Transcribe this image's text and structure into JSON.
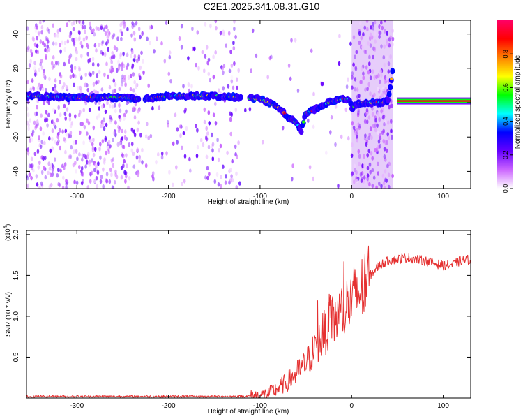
{
  "title": "C2E1.2025.341.08.31.G10",
  "chart_data": [
    {
      "type": "heatmap",
      "xlabel": "Height of straight line (km)",
      "ylabel": "Frequency (Hz)",
      "xlim": [
        -355,
        130
      ],
      "ylim": [
        -50,
        48
      ],
      "xticks": [
        -300,
        -200,
        -100,
        0,
        100
      ],
      "yticks": [
        -40,
        -20,
        0,
        20,
        40
      ],
      "colorbar": {
        "label": "Normalized spectral amplitude",
        "range": [
          0,
          1
        ],
        "ticks": [
          "0.0",
          "0.2",
          "0.4",
          "0.6",
          "0.8"
        ],
        "tick_values": [
          0.0,
          0.2,
          0.4,
          0.6,
          0.8
        ],
        "colors": [
          "#ffffff",
          "#cc66ff",
          "#6600ff",
          "#0000ff",
          "#00ffff",
          "#00ff00",
          "#ffff00",
          "#ff8000",
          "#ff0000",
          "#ff0066"
        ]
      },
      "scatter_region": {
        "x": [
          -355,
          45
        ],
        "y": [
          -50,
          48
        ]
      },
      "noise_band": {
        "x": [
          0,
          45
        ]
      },
      "ridge": {
        "x": [
          -355,
          -300,
          -250,
          -230,
          -200,
          -150,
          -120,
          -100,
          -90,
          -80,
          -70,
          -60,
          -55,
          -50,
          -40,
          -30,
          -20,
          -10,
          -3,
          0,
          10,
          20,
          30,
          40,
          45,
          48,
          50,
          60,
          80,
          100,
          130
        ],
        "y": [
          4,
          3,
          3,
          2,
          4,
          4,
          3,
          2,
          0,
          -3,
          -8,
          -12,
          -16,
          -6,
          -4,
          -1,
          1,
          2,
          2,
          -3,
          0,
          0,
          0,
          1,
          20,
          2,
          1,
          1,
          1,
          1,
          1
        ]
      },
      "line_segment": {
        "x": [
          50,
          130
        ],
        "y": 1
      }
    },
    {
      "type": "line",
      "xlabel": "Height of straight line (km)",
      "ylabel": "SNR (10 * v/v)",
      "y_multiplier_label": "(x10",
      "y_multiplier_exponent": "4",
      "y_multiplier_close": ")",
      "xlim": [
        -355,
        130
      ],
      "ylim": [
        0,
        2.05
      ],
      "xticks": [
        -300,
        -200,
        -100,
        0,
        100
      ],
      "yticks": [
        0.5,
        1.0,
        1.5,
        2.0
      ],
      "ytick_labels": [
        "0.5",
        "1.0",
        "1.5",
        "2.0"
      ],
      "series": [
        {
          "color": "#e53030",
          "x": [
            -355,
            -300,
            -250,
            -200,
            -150,
            -120,
            -100,
            -90,
            -80,
            -70,
            -60,
            -50,
            -40,
            -30,
            -20,
            -10,
            0,
            10,
            20,
            30,
            40,
            50,
            60,
            70,
            80,
            90,
            100,
            110,
            120,
            130
          ],
          "values": [
            0.02,
            0.02,
            0.02,
            0.02,
            0.02,
            0.02,
            0.03,
            0.06,
            0.12,
            0.2,
            0.3,
            0.42,
            0.6,
            0.8,
            0.95,
            1.05,
            1.2,
            1.3,
            1.5,
            1.62,
            1.68,
            1.7,
            1.72,
            1.7,
            1.68,
            1.65,
            1.62,
            1.63,
            1.68,
            1.7
          ]
        }
      ]
    }
  ]
}
